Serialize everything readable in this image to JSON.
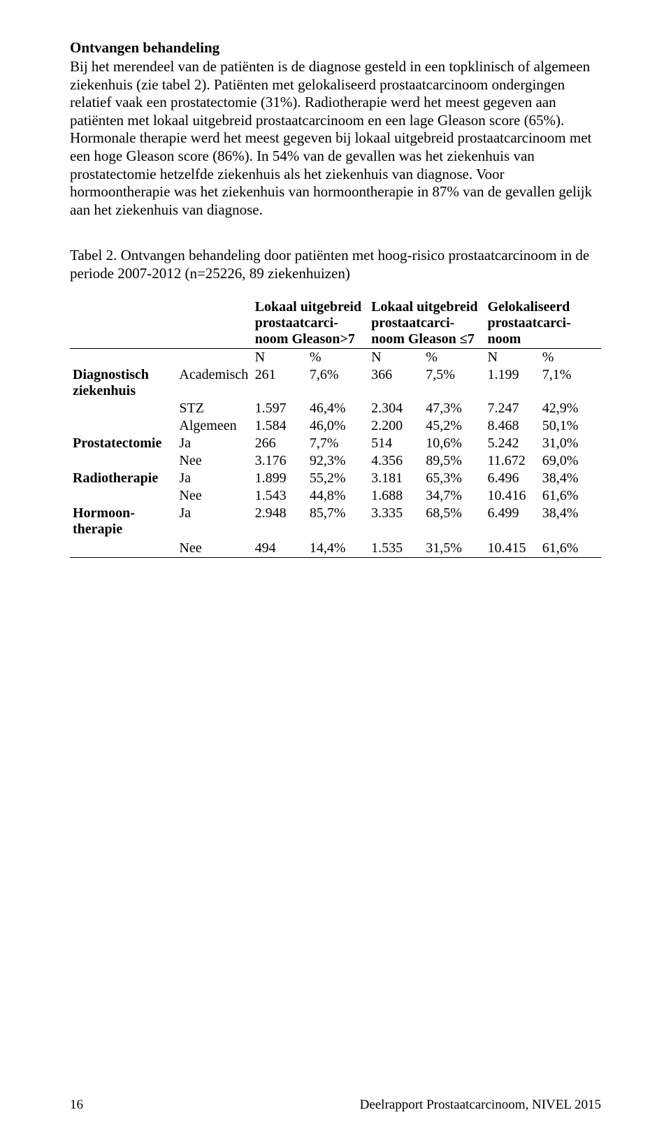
{
  "section_title": "Ontvangen behandeling",
  "body_text": "Bij het merendeel van de patiënten is de diagnose gesteld in een topklinisch of algemeen ziekenhuis (zie tabel 2). Patiënten met gelokaliseerd prostaatcarcinoom ondergingen relatief vaak een prostatectomie (31%). Radiotherapie werd het meest gegeven aan patiënten met lokaal uitgebreid prostaatcarcinoom en een lage Gleason score (65%). Hormonale therapie werd het meest gegeven bij lokaal uitgebreid prostaatcarcinoom met een hoge Gleason score (86%). In 54% van de gevallen was het ziekenhuis van prostatectomie hetzelfde ziekenhuis als het ziekenhuis van diagnose. Voor hormoontherapie was het ziekenhuis van hormoontherapie in 87% van de gevallen gelijk aan het ziekenhuis van diagnose.",
  "table_caption": "Tabel 2. Ontvangen behandeling door patiënten met hoog-risico prostaatcarcinoom in de periode 2007-2012 (n=25226, 89 ziekenhuizen)",
  "table": {
    "group_headers": [
      "Lokaal uitgebreid prostaatcarci-noom Gleason>7",
      "Lokaal uitgebreid prostaatcarci-noom Gleason ≤7",
      "Gelokaliseerd prostaatcarci-noom"
    ],
    "n_label": "N",
    "pct_label": "%",
    "sections": [
      {
        "label": "Diagnostisch ziekenhuis",
        "rows": [
          {
            "cat": "Academisch",
            "g1n": "261",
            "g1p": "7,6%",
            "g2n": "366",
            "g2p": "7,5%",
            "g3n": "1.199",
            "g3p": "7,1%"
          },
          {
            "cat": "STZ",
            "g1n": "1.597",
            "g1p": "46,4%",
            "g2n": "2.304",
            "g2p": "47,3%",
            "g3n": "7.247",
            "g3p": "42,9%"
          },
          {
            "cat": "Algemeen",
            "g1n": "1.584",
            "g1p": "46,0%",
            "g2n": "2.200",
            "g2p": "45,2%",
            "g3n": "8.468",
            "g3p": "50,1%"
          }
        ]
      },
      {
        "label": "Prostatectomie",
        "rows": [
          {
            "cat": "Ja",
            "g1n": "266",
            "g1p": "7,7%",
            "g2n": "514",
            "g2p": "10,6%",
            "g3n": "5.242",
            "g3p": "31,0%"
          },
          {
            "cat": "Nee",
            "g1n": "3.176",
            "g1p": "92,3%",
            "g2n": "4.356",
            "g2p": "89,5%",
            "g3n": "11.672",
            "g3p": "69,0%"
          }
        ]
      },
      {
        "label": "Radiotherapie",
        "rows": [
          {
            "cat": "Ja",
            "g1n": "1.899",
            "g1p": "55,2%",
            "g2n": "3.181",
            "g2p": "65,3%",
            "g3n": "6.496",
            "g3p": "38,4%"
          },
          {
            "cat": "Nee",
            "g1n": "1.543",
            "g1p": "44,8%",
            "g2n": "1.688",
            "g2p": "34,7%",
            "g3n": "10.416",
            "g3p": "61,6%"
          }
        ]
      },
      {
        "label": "Hormoon-therapie",
        "rows": [
          {
            "cat": "Ja",
            "g1n": "2.948",
            "g1p": "85,7%",
            "g2n": "3.335",
            "g2p": "68,5%",
            "g3n": "6.499",
            "g3p": "38,4%"
          },
          {
            "cat": "",
            "g1n": "",
            "g1p": "",
            "g2n": "",
            "g2p": "",
            "g3n": "",
            "g3p": ""
          },
          {
            "cat": "Nee",
            "g1n": "494",
            "g1p": "14,4%",
            "g2n": "1.535",
            "g2p": "31,5%",
            "g3n": "10.415",
            "g3p": "61,6%"
          }
        ]
      }
    ]
  },
  "footer": {
    "page_number": "16",
    "footer_text": "Deelrapport Prostaatcarcinoom, NIVEL 2015"
  }
}
